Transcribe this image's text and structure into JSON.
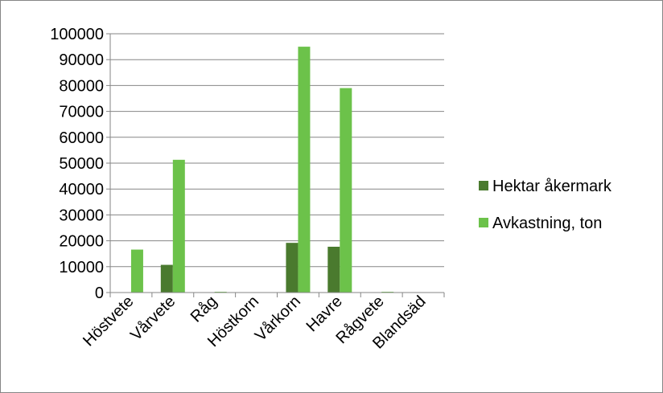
{
  "chart_data": {
    "type": "bar",
    "categories": [
      "Höstvete",
      "Vårvete",
      "Råg",
      "Höstkorn",
      "Vårkorn",
      "Havre",
      "Rågvete",
      "Blandsäd"
    ],
    "series": [
      {
        "name": "Hektar åkermark",
        "color": "#4a7a2e",
        "values": [
          0,
          10700,
          100,
          0,
          19200,
          17700,
          100,
          0
        ]
      },
      {
        "name": "Avkastning, ton",
        "color": "#6cc24a",
        "values": [
          16600,
          51300,
          300,
          0,
          95000,
          79000,
          300,
          0
        ]
      }
    ],
    "title": "",
    "xlabel": "",
    "ylabel": "",
    "ylim": [
      0,
      100000
    ],
    "yticks": [
      0,
      10000,
      20000,
      30000,
      40000,
      50000,
      60000,
      70000,
      80000,
      90000,
      100000
    ],
    "grid": true,
    "legend_position": "right"
  }
}
